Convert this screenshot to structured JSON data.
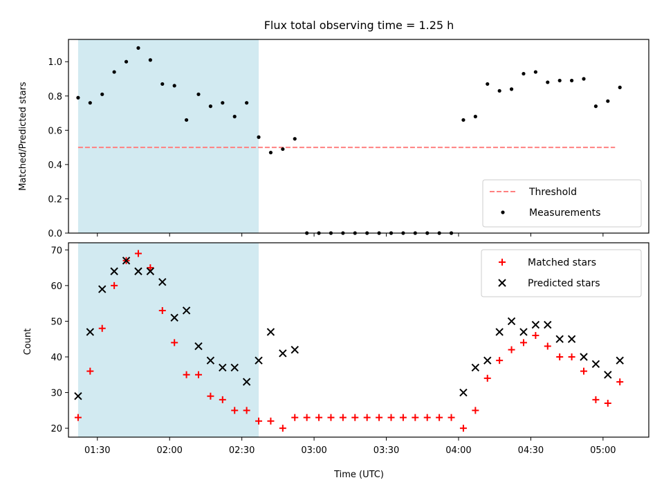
{
  "figure": {
    "title": "Flux total observing time = 1.25 h",
    "xlabel": "Time (UTC)",
    "x_ticks": [
      "01:30",
      "02:00",
      "02:30",
      "03:00",
      "03:30",
      "04:00",
      "04:30",
      "05:00"
    ],
    "colors": {
      "shade": "#add8e6",
      "threshold": "#ff8080",
      "matched": "#ff0000",
      "predicted": "#000000",
      "measurement": "#000000"
    }
  },
  "chart_data": [
    {
      "type": "scatter",
      "ylabel": "Matched/Predicted stars",
      "xlim": [
        "01:18",
        "05:19"
      ],
      "ylim": [
        0,
        1.13
      ],
      "y_ticks": [
        "0.0",
        "0.2",
        "0.4",
        "0.6",
        "0.8",
        "1.0"
      ],
      "grid": false,
      "legend_position": "lower-right",
      "shaded_interval": {
        "x": [
          "01:22",
          "02:37"
        ]
      },
      "threshold": {
        "name": "Threshold",
        "y": 0.5,
        "x": [
          "01:22",
          "05:05"
        ]
      },
      "series": [
        {
          "name": "Measurements",
          "x": [
            "01:22",
            "01:27",
            "01:32",
            "01:37",
            "01:42",
            "01:47",
            "01:52",
            "01:57",
            "02:02",
            "02:07",
            "02:12",
            "02:17",
            "02:22",
            "02:27",
            "02:32",
            "02:37",
            "02:42",
            "02:47",
            "02:52",
            "02:57",
            "03:02",
            "03:07",
            "03:12",
            "03:17",
            "03:22",
            "03:27",
            "03:32",
            "03:37",
            "03:42",
            "03:47",
            "03:52",
            "03:57",
            "04:02",
            "04:07",
            "04:12",
            "04:17",
            "04:22",
            "04:27",
            "04:32",
            "04:37",
            "04:42",
            "04:47",
            "04:52",
            "04:57",
            "05:02",
            "05:07"
          ],
          "y": [
            0.79,
            0.76,
            0.81,
            0.94,
            1.0,
            1.08,
            1.01,
            0.87,
            0.86,
            0.66,
            0.81,
            0.74,
            0.76,
            0.68,
            0.76,
            0.56,
            0.47,
            0.49,
            0.55,
            0.0,
            0.0,
            0.0,
            0.0,
            0.0,
            0.0,
            0.0,
            0.0,
            0.0,
            0.0,
            0.0,
            0.0,
            0.0,
            0.66,
            0.68,
            0.87,
            0.83,
            0.84,
            0.93,
            0.94,
            0.88,
            0.89,
            0.89,
            0.9,
            0.74,
            0.77,
            0.85
          ]
        }
      ]
    },
    {
      "type": "scatter",
      "ylabel": "Count",
      "xlim": [
        "01:18",
        "05:19"
      ],
      "ylim": [
        17.5,
        72
      ],
      "y_ticks": [
        "20",
        "30",
        "40",
        "50",
        "60",
        "70"
      ],
      "grid": false,
      "legend_position": "upper-right",
      "shaded_interval": {
        "x": [
          "01:22",
          "02:37"
        ]
      },
      "series": [
        {
          "name": "Matched stars",
          "marker": "plus",
          "x": [
            "01:22",
            "01:27",
            "01:32",
            "01:37",
            "01:42",
            "01:47",
            "01:52",
            "01:57",
            "02:02",
            "02:07",
            "02:12",
            "02:17",
            "02:22",
            "02:27",
            "02:32",
            "02:37",
            "02:42",
            "02:47",
            "02:52",
            "02:57",
            "03:02",
            "03:07",
            "03:12",
            "03:17",
            "03:22",
            "03:27",
            "03:32",
            "03:37",
            "03:42",
            "03:47",
            "03:52",
            "03:57",
            "04:02",
            "04:07",
            "04:12",
            "04:17",
            "04:22",
            "04:27",
            "04:32",
            "04:37",
            "04:42",
            "04:47",
            "04:52",
            "04:57",
            "05:02",
            "05:07"
          ],
          "y": [
            23,
            36,
            48,
            60,
            67,
            69,
            65,
            53,
            44,
            35,
            35,
            29,
            28,
            25,
            25,
            22,
            22,
            20,
            23,
            23,
            23,
            23,
            23,
            23,
            23,
            23,
            23,
            23,
            23,
            23,
            23,
            23,
            20,
            25,
            34,
            39,
            42,
            44,
            46,
            43,
            40,
            40,
            36,
            28,
            27,
            33
          ]
        },
        {
          "name": "Predicted stars",
          "marker": "x",
          "x": [
            "01:22",
            "01:27",
            "01:32",
            "01:37",
            "01:42",
            "01:47",
            "01:52",
            "01:57",
            "02:02",
            "02:07",
            "02:12",
            "02:17",
            "02:22",
            "02:27",
            "02:32",
            "02:37",
            "02:42",
            "02:47",
            "02:52",
            "04:02",
            "04:07",
            "04:12",
            "04:17",
            "04:22",
            "04:27",
            "04:32",
            "04:37",
            "04:42",
            "04:47",
            "04:52",
            "04:57",
            "05:02",
            "05:07"
          ],
          "y": [
            29,
            47,
            59,
            64,
            67,
            64,
            64,
            61,
            51,
            53,
            43,
            39,
            37,
            37,
            33,
            39,
            47,
            41,
            42,
            30,
            37,
            39,
            47,
            50,
            47,
            49,
            49,
            45,
            45,
            40,
            38,
            35,
            39
          ]
        }
      ]
    }
  ]
}
